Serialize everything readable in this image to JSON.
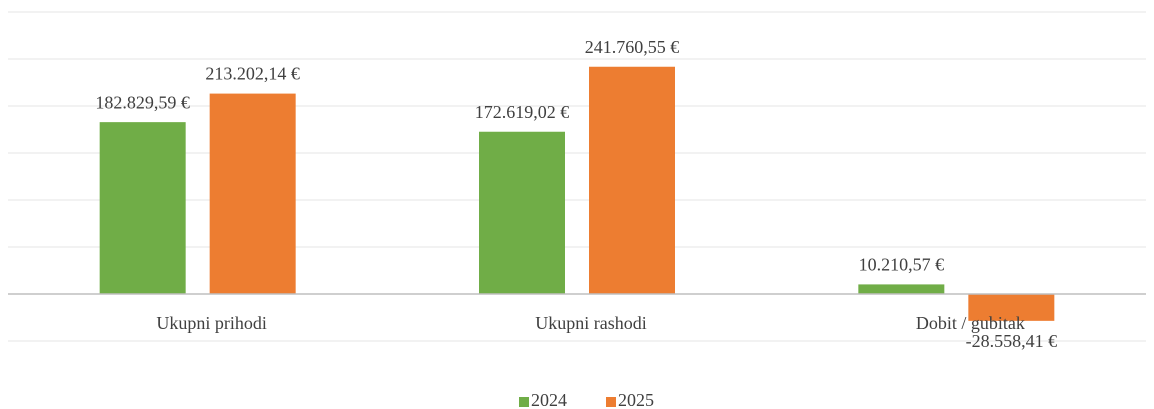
{
  "chart_data": {
    "type": "bar",
    "categories": [
      "Ukupni prihodi",
      "Ukupni rashodi",
      "Dobit / gubitak"
    ],
    "series": [
      {
        "name": "2024",
        "color": "#70ad47",
        "values": [
          182829.59,
          172619.02,
          10210.57
        ],
        "value_labels": [
          "182.829,59 €",
          "172.619,02 €",
          "10.210,57 €"
        ]
      },
      {
        "name": "2025",
        "color": "#ed7d31",
        "values": [
          213202.14,
          241760.55,
          -28558.41
        ],
        "value_labels": [
          "213.202,14 €",
          "241.760,55 €",
          "-28.558,41 €"
        ]
      }
    ],
    "ylim": [
      -50000,
      300000
    ],
    "yticks": [
      -50000,
      0,
      50000,
      100000,
      150000,
      200000,
      250000,
      300000
    ],
    "ytick_labels": false,
    "grid": true,
    "legend": "bottom"
  }
}
